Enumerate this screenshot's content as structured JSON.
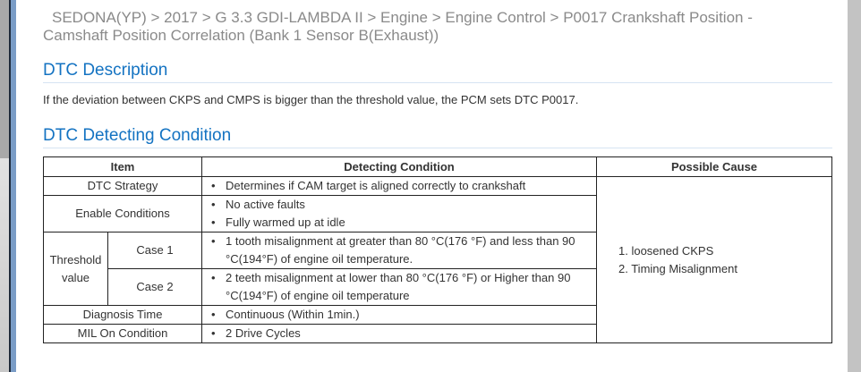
{
  "breadcrumb": {
    "line1": "SEDONA(YP) > 2017 > G 3.3 GDI-LAMBDA II > Engine > Engine Control > P0017 Crankshaft Position -",
    "line2": "Camshaft Position Correlation (Bank 1 Sensor B(Exhaust))"
  },
  "description": {
    "heading": "DTC Description",
    "text": "If the deviation between CKPS and CMPS is bigger than the threshold value, the PCM sets DTC P0017."
  },
  "condition": {
    "heading": "DTC Detecting Condition",
    "headers": [
      "Item",
      "Detecting Condition",
      "Possible Cause"
    ],
    "rows": {
      "strategy": {
        "item": "DTC Strategy",
        "cond": [
          "Determines if CAM target is aligned correctly to crankshaft"
        ]
      },
      "enable": {
        "item": "Enable Conditions",
        "cond": [
          "No active faults",
          "Fully warmed up at idle"
        ]
      },
      "threshold": {
        "item": "Threshold value",
        "case1": "Case 1",
        "case1_cond": [
          "1 tooth misalignment at greater than 80 °C(176 °F) and less than 90 °C(194°F) of engine oil temperature."
        ],
        "case2": "Case 2",
        "case2_cond": [
          "2 teeth misalignment at lower than 80 °C(176 °F) or Higher than 90 °C(194°F) of engine oil temperature"
        ]
      },
      "diag": {
        "item": "Diagnosis Time",
        "cond": [
          "Continuous (Within 1min.)"
        ]
      },
      "mil": {
        "item": "MIL On Condition",
        "cond": [
          "2 Drive Cycles"
        ]
      }
    },
    "causes": [
      "1. loosened CKPS",
      "2. Timing Misalignment"
    ]
  }
}
